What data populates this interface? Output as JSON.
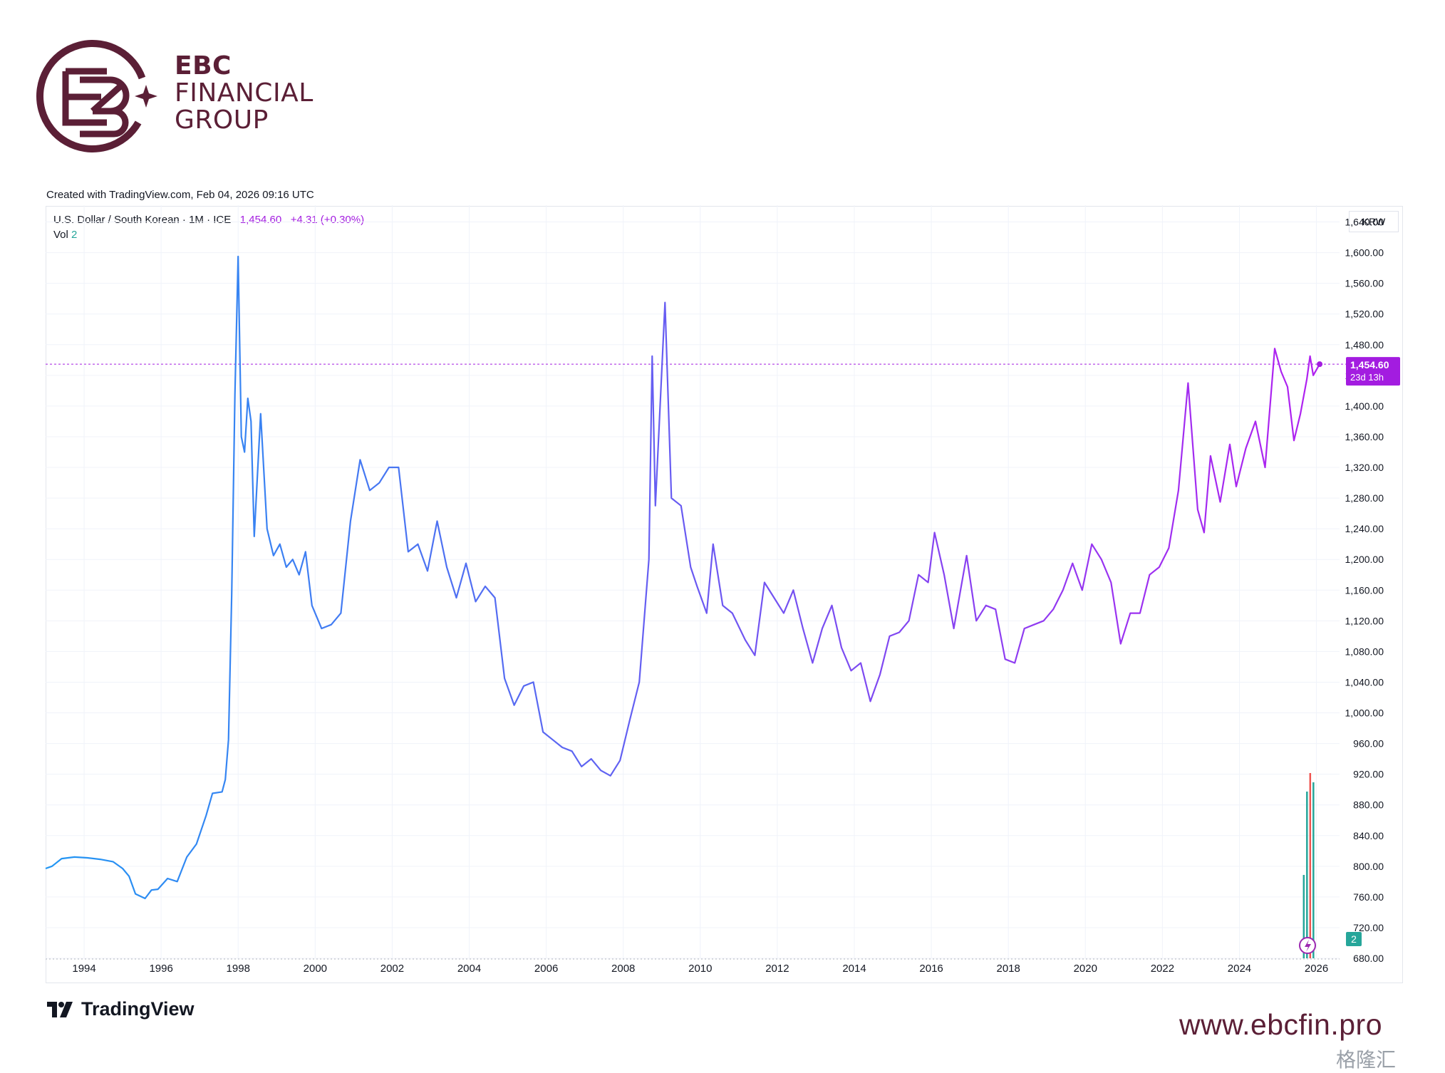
{
  "brand": {
    "line1": "EBC",
    "line2": "FINANCIAL",
    "line3": "GROUP",
    "color": "#5b1f36",
    "logo_icon": "ebc-monogram-logo"
  },
  "created_note": "Created with TradingView.com, Feb 04, 2026 09:16 UTC",
  "legend": {
    "symbol": "U.S. Dollar / South Korean · 1M · ICE",
    "last": "1,454.60",
    "change": "+4.31 (+0.30%)",
    "vol_label": "Vol",
    "vol_value": "2"
  },
  "currency_label": "KRW",
  "footer": {
    "tradingview": "TradingView",
    "url": "www.ebcfin.pro",
    "watermark": "格隆汇"
  },
  "colors": {
    "line_start": "#2196f3",
    "line_end": "#b31ef0",
    "price_tag": "#a31ce0",
    "vol_up": "#26a69a",
    "vol_down": "#ef5350"
  },
  "chart_data": {
    "type": "line",
    "title": "U.S. Dollar / South Korean",
    "interval": "1M",
    "source": "ICE",
    "ylim": [
      680,
      1660
    ],
    "y_ticks": [
      "1,640.00",
      "1,600.00",
      "1,560.00",
      "1,520.00",
      "1,480.00",
      "1,440.00",
      "1,400.00",
      "1,360.00",
      "1,320.00",
      "1,280.00",
      "1,240.00",
      "1,200.00",
      "1,160.00",
      "1,120.00",
      "1,080.00",
      "1,040.00",
      "1,000.00",
      "960.00",
      "920.00",
      "880.00",
      "840.00",
      "800.00",
      "760.00",
      "720.00",
      "680.00"
    ],
    "x_ticks": [
      "1994",
      "1996",
      "1998",
      "2000",
      "2002",
      "2004",
      "2006",
      "2008",
      "2010",
      "2012",
      "2014",
      "2016",
      "2018",
      "2020",
      "2022",
      "2024",
      "2026"
    ],
    "price_tag": {
      "value": "1,454.60",
      "countdown": "23d 13h"
    },
    "volume_tag": "2",
    "points": [
      [
        "1993-01",
        797
      ],
      [
        "1993-03",
        800
      ],
      [
        "1993-06",
        810
      ],
      [
        "1993-10",
        812
      ],
      [
        "1994-02",
        811
      ],
      [
        "1994-06",
        809
      ],
      [
        "1994-10",
        806
      ],
      [
        "1995-01",
        797
      ],
      [
        "1995-03",
        787
      ],
      [
        "1995-05",
        764
      ],
      [
        "1995-08",
        758
      ],
      [
        "1995-10",
        769
      ],
      [
        "1995-12",
        770
      ],
      [
        "1996-03",
        784
      ],
      [
        "1996-06",
        780
      ],
      [
        "1996-09",
        812
      ],
      [
        "1996-12",
        829
      ],
      [
        "1997-03",
        866
      ],
      [
        "1997-05",
        895
      ],
      [
        "1997-08",
        897
      ],
      [
        "1997-09",
        913
      ],
      [
        "1997-10",
        965
      ],
      [
        "1997-11",
        1155
      ],
      [
        "1997-12",
        1415
      ],
      [
        "1998-01",
        1595
      ],
      [
        "1998-02",
        1360
      ],
      [
        "1998-03",
        1340
      ],
      [
        "1998-04",
        1410
      ],
      [
        "1998-05",
        1380
      ],
      [
        "1998-06",
        1230
      ],
      [
        "1998-08",
        1390
      ],
      [
        "1998-10",
        1240
      ],
      [
        "1998-12",
        1205
      ],
      [
        "1999-02",
        1220
      ],
      [
        "1999-04",
        1190
      ],
      [
        "1999-06",
        1200
      ],
      [
        "1999-08",
        1180
      ],
      [
        "1999-10",
        1210
      ],
      [
        "1999-12",
        1140
      ],
      [
        "2000-03",
        1110
      ],
      [
        "2000-06",
        1115
      ],
      [
        "2000-09",
        1130
      ],
      [
        "2000-12",
        1250
      ],
      [
        "2001-03",
        1330
      ],
      [
        "2001-06",
        1290
      ],
      [
        "2001-09",
        1300
      ],
      [
        "2001-12",
        1320
      ],
      [
        "2002-03",
        1320
      ],
      [
        "2002-06",
        1210
      ],
      [
        "2002-09",
        1220
      ],
      [
        "2002-12",
        1185
      ],
      [
        "2003-03",
        1250
      ],
      [
        "2003-06",
        1190
      ],
      [
        "2003-09",
        1150
      ],
      [
        "2003-12",
        1195
      ],
      [
        "2004-03",
        1145
      ],
      [
        "2004-06",
        1165
      ],
      [
        "2004-09",
        1150
      ],
      [
        "2004-12",
        1045
      ],
      [
        "2005-03",
        1010
      ],
      [
        "2005-06",
        1035
      ],
      [
        "2005-09",
        1040
      ],
      [
        "2005-12",
        975
      ],
      [
        "2006-03",
        965
      ],
      [
        "2006-06",
        955
      ],
      [
        "2006-09",
        950
      ],
      [
        "2006-12",
        930
      ],
      [
        "2007-03",
        940
      ],
      [
        "2007-06",
        925
      ],
      [
        "2007-09",
        918
      ],
      [
        "2007-12",
        938
      ],
      [
        "2008-03",
        990
      ],
      [
        "2008-06",
        1040
      ],
      [
        "2008-09",
        1200
      ],
      [
        "2008-10",
        1465
      ],
      [
        "2008-11",
        1270
      ],
      [
        "2009-02",
        1535
      ],
      [
        "2009-04",
        1280
      ],
      [
        "2009-07",
        1270
      ],
      [
        "2009-10",
        1190
      ],
      [
        "2009-12",
        1165
      ],
      [
        "2010-03",
        1130
      ],
      [
        "2010-05",
        1220
      ],
      [
        "2010-08",
        1140
      ],
      [
        "2010-11",
        1130
      ],
      [
        "2011-03",
        1095
      ],
      [
        "2011-06",
        1075
      ],
      [
        "2011-09",
        1170
      ],
      [
        "2011-12",
        1150
      ],
      [
        "2012-03",
        1130
      ],
      [
        "2012-06",
        1160
      ],
      [
        "2012-09",
        1110
      ],
      [
        "2012-12",
        1065
      ],
      [
        "2013-03",
        1110
      ],
      [
        "2013-06",
        1140
      ],
      [
        "2013-09",
        1085
      ],
      [
        "2013-12",
        1055
      ],
      [
        "2014-03",
        1065
      ],
      [
        "2014-06",
        1015
      ],
      [
        "2014-09",
        1050
      ],
      [
        "2014-12",
        1100
      ],
      [
        "2015-03",
        1105
      ],
      [
        "2015-06",
        1120
      ],
      [
        "2015-09",
        1180
      ],
      [
        "2015-12",
        1170
      ],
      [
        "2016-02",
        1235
      ],
      [
        "2016-05",
        1180
      ],
      [
        "2016-08",
        1110
      ],
      [
        "2016-12",
        1205
      ],
      [
        "2017-03",
        1120
      ],
      [
        "2017-06",
        1140
      ],
      [
        "2017-09",
        1135
      ],
      [
        "2017-12",
        1070
      ],
      [
        "2018-03",
        1065
      ],
      [
        "2018-06",
        1110
      ],
      [
        "2018-09",
        1115
      ],
      [
        "2018-12",
        1120
      ],
      [
        "2019-03",
        1135
      ],
      [
        "2019-06",
        1160
      ],
      [
        "2019-09",
        1195
      ],
      [
        "2019-12",
        1160
      ],
      [
        "2020-03",
        1220
      ],
      [
        "2020-06",
        1200
      ],
      [
        "2020-09",
        1170
      ],
      [
        "2020-12",
        1090
      ],
      [
        "2021-03",
        1130
      ],
      [
        "2021-06",
        1130
      ],
      [
        "2021-09",
        1180
      ],
      [
        "2021-12",
        1190
      ],
      [
        "2022-03",
        1215
      ],
      [
        "2022-06",
        1290
      ],
      [
        "2022-09",
        1430
      ],
      [
        "2022-12",
        1265
      ],
      [
        "2023-02",
        1235
      ],
      [
        "2023-04",
        1335
      ],
      [
        "2023-07",
        1275
      ],
      [
        "2023-10",
        1350
      ],
      [
        "2023-12",
        1295
      ],
      [
        "2024-03",
        1345
      ],
      [
        "2024-06",
        1380
      ],
      [
        "2024-09",
        1320
      ],
      [
        "2024-12",
        1475
      ],
      [
        "2025-02",
        1445
      ],
      [
        "2025-04",
        1425
      ],
      [
        "2025-06",
        1355
      ],
      [
        "2025-08",
        1390
      ],
      [
        "2025-10",
        1435
      ],
      [
        "2025-11",
        1465
      ],
      [
        "2025-12",
        1440
      ],
      [
        "2026-02",
        1454.6
      ]
    ],
    "volume": [
      {
        "x": "2025-09",
        "value": 0.45,
        "dir": "up"
      },
      {
        "x": "2025-10",
        "value": 0.9,
        "dir": "up"
      },
      {
        "x": "2025-11",
        "value": 1.0,
        "dir": "down"
      },
      {
        "x": "2025-12",
        "value": 0.95,
        "dir": "up"
      }
    ]
  }
}
